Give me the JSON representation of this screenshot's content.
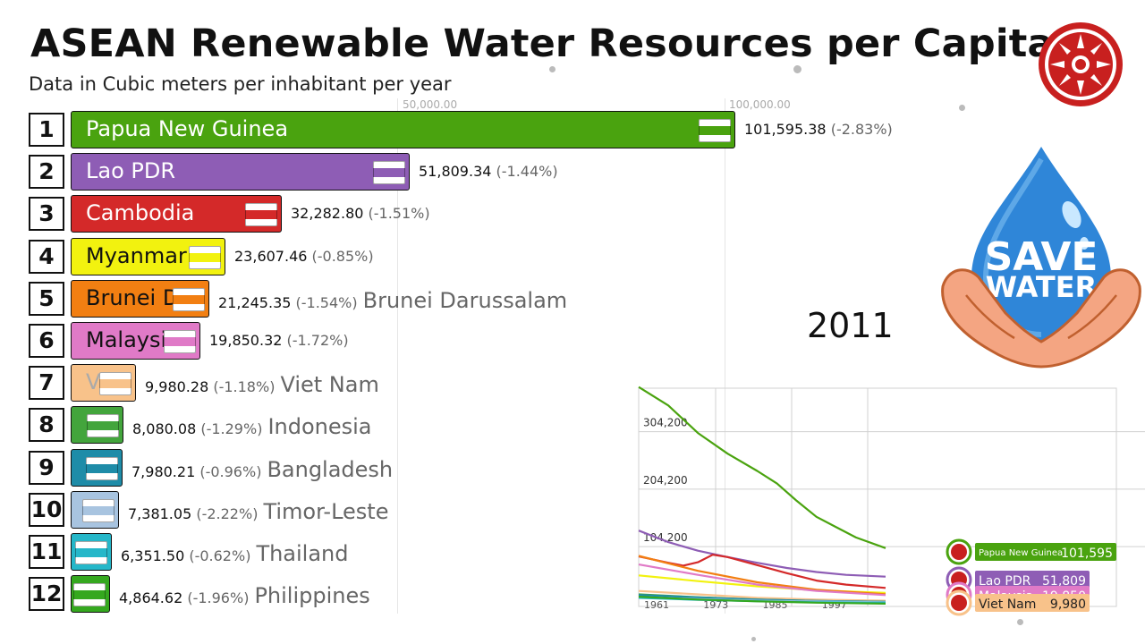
{
  "title": "ASEAN Renewable Water Resources per Capita",
  "subtitle": "Data in Cubic meters per inhabitant per year",
  "year": "2011",
  "axis_ticks": [
    "50,000.00",
    "100,000.00"
  ],
  "chart_data": [
    {
      "type": "bar",
      "title": "ASEAN Renewable Water Resources per Capita",
      "subtitle": "Data in Cubic meters per inhabitant per year",
      "year": "2011",
      "xlim": [
        0,
        100000
      ],
      "bars": [
        {
          "rank": "1",
          "name": "Papua New Guinea",
          "bar_label": "Papua New Guinea",
          "value": 101595.38,
          "value_text": "101,595.38",
          "change": "(-2.83%)",
          "outside_name": "",
          "color": "#4aa30f",
          "label_color": "#ffffff"
        },
        {
          "rank": "2",
          "name": "Lao PDR",
          "bar_label": "Lao PDR",
          "value": 51809.34,
          "value_text": "51,809.34",
          "change": "(-1.44%)",
          "outside_name": "",
          "color": "#8e5db5",
          "label_color": "#ffffff"
        },
        {
          "rank": "3",
          "name": "Cambodia",
          "bar_label": "Cambodia",
          "value": 32282.8,
          "value_text": "32,282.80",
          "change": "(-1.51%)",
          "outside_name": "",
          "color": "#d42929",
          "label_color": "#ffffff"
        },
        {
          "rank": "4",
          "name": "Myanmar",
          "bar_label": "Myanmar",
          "value": 23607.46,
          "value_text": "23,607.46",
          "change": "(-0.85%)",
          "outside_name": "",
          "color": "#f2f20f",
          "label_color": "#111111"
        },
        {
          "rank": "5",
          "name": "Brunei Darussalam",
          "bar_label": "Brunei D",
          "value": 21245.35,
          "value_text": "21,245.35",
          "change": "(-1.54%)",
          "outside_name": "Brunei Darussalam",
          "color": "#f27f12",
          "label_color": "#111111"
        },
        {
          "rank": "6",
          "name": "Malaysia",
          "bar_label": "Malaysi",
          "value": 19850.32,
          "value_text": "19,850.32",
          "change": "(-1.72%)",
          "outside_name": "",
          "color": "#e07ac7",
          "label_color": "#111111"
        },
        {
          "rank": "7",
          "name": "Viet Nam",
          "bar_label": "V",
          "value": 9980.28,
          "value_text": "9,980.28",
          "change": "(-1.18%)",
          "outside_name": "Viet Nam",
          "color": "#f8c28a",
          "label_color": "#aaaaaa"
        },
        {
          "rank": "8",
          "name": "Indonesia",
          "bar_label": "",
          "value": 8080.08,
          "value_text": "8,080.08",
          "change": "(-1.29%)",
          "outside_name": "Indonesia",
          "color": "#43a53c",
          "label_color": "#ffffff"
        },
        {
          "rank": "9",
          "name": "Bangladesh",
          "bar_label": "",
          "value": 7980.21,
          "value_text": "7,980.21",
          "change": "(-0.96%)",
          "outside_name": "Bangladesh",
          "color": "#1e8ca8",
          "label_color": "#ffffff"
        },
        {
          "rank": "10",
          "name": "Timor-Leste",
          "bar_label": "",
          "value": 7381.05,
          "value_text": "7,381.05",
          "change": "(-2.22%)",
          "outside_name": "Timor-Leste",
          "color": "#a8c4e0",
          "label_color": "#ffffff"
        },
        {
          "rank": "11",
          "name": "Thailand",
          "bar_label": "",
          "value": 6351.5,
          "value_text": "6,351.50",
          "change": "(-0.62%)",
          "outside_name": "Thailand",
          "color": "#25b7c9",
          "label_color": "#ffffff"
        },
        {
          "rank": "12",
          "name": "Philippines",
          "bar_label": "",
          "value": 4864.62,
          "value_text": "4,864.62",
          "change": "(-1.96%)",
          "outside_name": "Philippines",
          "color": "#35a81f",
          "label_color": "#ffffff"
        }
      ]
    },
    {
      "type": "line",
      "x_ticks": [
        "1961",
        "1973",
        "1985",
        "1997"
      ],
      "y_ticks": [
        "304,200",
        "204,200",
        "104,200"
      ],
      "xlim": [
        1961,
        2011
      ],
      "ylim": [
        0,
        380000
      ],
      "series": [
        {
          "name": "Papua New Guinea",
          "color": "#4aa30f",
          "end_label": "Papua New Guinea",
          "end_value": "101,595",
          "points": [
            [
              1961,
              382000
            ],
            [
              1967,
              350000
            ],
            [
              1973,
              302000
            ],
            [
              1979,
              266000
            ],
            [
              1985,
              236000
            ],
            [
              1989,
              214000
            ],
            [
              1993,
              184000
            ],
            [
              1997,
              156000
            ],
            [
              2001,
              138000
            ],
            [
              2005,
              120000
            ],
            [
              2011,
              101595
            ]
          ]
        },
        {
          "name": "Lao PDR",
          "color": "#8e5db5",
          "end_label": "Lao PDR",
          "end_value": "51,809",
          "points": [
            [
              1961,
              132000
            ],
            [
              1967,
              112000
            ],
            [
              1973,
              97000
            ],
            [
              1979,
              86000
            ],
            [
              1985,
              76000
            ],
            [
              1991,
              67000
            ],
            [
              1997,
              60000
            ],
            [
              2003,
              55000
            ],
            [
              2011,
              51809
            ]
          ]
        },
        {
          "name": "Cambodia",
          "color": "#d42929",
          "end_label": "",
          "end_value": "",
          "points": [
            [
              1961,
              87000
            ],
            [
              1967,
              76000
            ],
            [
              1970,
              71000
            ],
            [
              1973,
              77000
            ],
            [
              1976,
              90000
            ],
            [
              1979,
              86000
            ],
            [
              1985,
              72000
            ],
            [
              1991,
              58000
            ],
            [
              1997,
              45000
            ],
            [
              2003,
              38000
            ],
            [
              2011,
              32283
            ]
          ]
        },
        {
          "name": "Myanmar",
          "color": "#f2f20f",
          "end_label": "",
          "end_value": "",
          "points": [
            [
              1961,
              54000
            ],
            [
              1973,
              44000
            ],
            [
              1985,
              35000
            ],
            [
              1997,
              28000
            ],
            [
              2011,
              23607
            ]
          ]
        },
        {
          "name": "Brunei Darussalam",
          "color": "#f27f12",
          "end_label": "",
          "end_value": "",
          "points": [
            [
              1961,
              88000
            ],
            [
              1973,
              62000
            ],
            [
              1985,
              42000
            ],
            [
              1997,
              29000
            ],
            [
              2011,
              21245
            ]
          ]
        },
        {
          "name": "Malaysia",
          "color": "#e07ac7",
          "end_label": "Malaysia",
          "end_value": "19,850",
          "points": [
            [
              1961,
              73000
            ],
            [
              1973,
              55000
            ],
            [
              1985,
              38000
            ],
            [
              1997,
              27000
            ],
            [
              2011,
              19850
            ]
          ]
        },
        {
          "name": "Viet Nam",
          "color": "#f8c28a",
          "end_label": "Viet Nam",
          "end_value": "9,980",
          "points": [
            [
              1961,
              27000
            ],
            [
              1973,
              21000
            ],
            [
              1985,
              15000
            ],
            [
              1997,
              12000
            ],
            [
              2011,
              9980
            ]
          ]
        },
        {
          "name": "Indonesia",
          "color": "#43a53c",
          "end_label": "",
          "end_value": "",
          "points": [
            [
              1961,
              21000
            ],
            [
              1973,
              16000
            ],
            [
              1985,
              12000
            ],
            [
              1997,
              9500
            ],
            [
              2011,
              8080
            ]
          ]
        },
        {
          "name": "Bangladesh",
          "color": "#1e8ca8",
          "end_label": "",
          "end_value": "",
          "points": [
            [
              1961,
              20000
            ],
            [
              1973,
              15500
            ],
            [
              1985,
              12000
            ],
            [
              1997,
              9500
            ],
            [
              2011,
              7980
            ]
          ]
        },
        {
          "name": "Timor-Leste",
          "color": "#a8c4e0",
          "end_label": "",
          "end_value": "",
          "points": [
            [
              1961,
              16000
            ],
            [
              1973,
              13000
            ],
            [
              1985,
              10000
            ],
            [
              1997,
              8500
            ],
            [
              2011,
              7381
            ]
          ]
        },
        {
          "name": "Thailand",
          "color": "#25b7c9",
          "end_label": "",
          "end_value": "",
          "points": [
            [
              1961,
              15000
            ],
            [
              1973,
              11500
            ],
            [
              1985,
              9000
            ],
            [
              1997,
              7300
            ],
            [
              2011,
              6352
            ]
          ]
        },
        {
          "name": "Philippines",
          "color": "#35a81f",
          "end_label": "",
          "end_value": "",
          "points": [
            [
              1961,
              17000
            ],
            [
              1973,
              12000
            ],
            [
              1985,
              8800
            ],
            [
              1997,
              6500
            ],
            [
              2011,
              4865
            ]
          ]
        }
      ]
    }
  ],
  "save_water": {
    "line1": "SAVE",
    "line2": "WATER"
  }
}
